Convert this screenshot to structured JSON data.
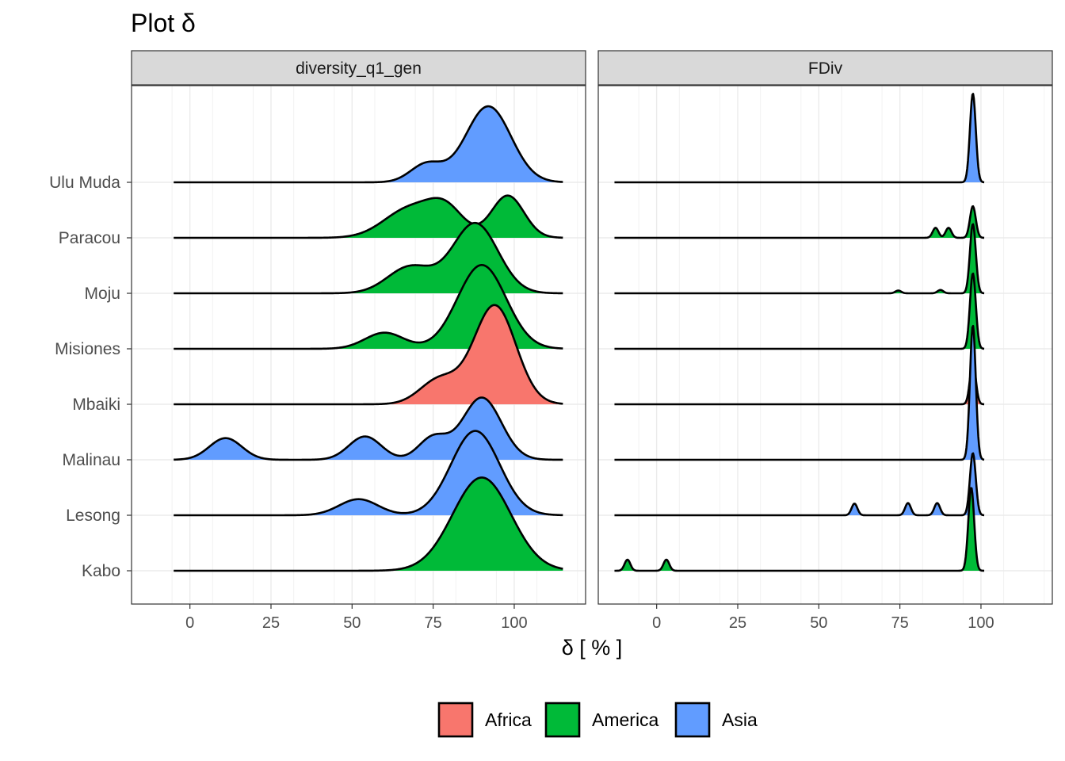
{
  "title": "Plot δ",
  "chart_data": {
    "type": "ridgeline",
    "xlabel": "δ [ % ]",
    "ylabel": "",
    "xlim": [
      -18,
      122
    ],
    "xticks": [
      0,
      25,
      50,
      75,
      100
    ],
    "grid": true,
    "legend_position": "bottom",
    "sites": [
      "Kabo",
      "Lesong",
      "Malinau",
      "Mbaiki",
      "Misiones",
      "Moju",
      "Paracou",
      "Ulu Muda"
    ],
    "groups": [
      {
        "name": "Africa",
        "color": "#F8766D"
      },
      {
        "name": "America",
        "color": "#00BA38"
      },
      {
        "name": "Asia",
        "color": "#619CFF"
      }
    ],
    "panels": [
      {
        "strip": "diversity_q1_gen",
        "range": [
          -5,
          115
        ],
        "ridges": [
          {
            "site": "Kabo",
            "group": "America",
            "components": [
              {
                "mu": 90,
                "sigma": 9,
                "h": 1.68
              }
            ]
          },
          {
            "site": "Lesong",
            "group": "Asia",
            "components": [
              {
                "mu": 52,
                "sigma": 6,
                "h": 0.29
              },
              {
                "mu": 88,
                "sigma": 7.5,
                "h": 1.52
              }
            ]
          },
          {
            "site": "Malinau",
            "group": "Asia",
            "components": [
              {
                "mu": 11,
                "sigma": 5,
                "h": 0.39
              },
              {
                "mu": 54,
                "sigma": 5,
                "h": 0.42
              },
              {
                "mu": 75,
                "sigma": 4.5,
                "h": 0.4
              },
              {
                "mu": 90,
                "sigma": 6,
                "h": 1.12
              }
            ]
          },
          {
            "site": "Mbaiki",
            "group": "Africa",
            "components": [
              {
                "mu": 77,
                "sigma": 6,
                "h": 0.45
              },
              {
                "mu": 94,
                "sigma": 6.5,
                "h": 1.78
              }
            ]
          },
          {
            "site": "Misiones",
            "group": "America",
            "components": [
              {
                "mu": 60,
                "sigma": 6,
                "h": 0.29
              },
              {
                "mu": 90,
                "sigma": 7.5,
                "h": 1.51
              }
            ]
          },
          {
            "site": "Moju",
            "group": "America",
            "components": [
              {
                "mu": 68,
                "sigma": 7,
                "h": 0.48
              },
              {
                "mu": 88,
                "sigma": 7,
                "h": 1.26
              }
            ]
          },
          {
            "site": "Paracou",
            "group": "America",
            "components": [
              {
                "mu": 68,
                "sigma": 8,
                "h": 0.53
              },
              {
                "mu": 79,
                "sigma": 5.5,
                "h": 0.46
              },
              {
                "mu": 98,
                "sigma": 5,
                "h": 0.76
              }
            ]
          },
          {
            "site": "Ulu Muda",
            "group": "Asia",
            "components": [
              {
                "mu": 73,
                "sigma": 5,
                "h": 0.33
              },
              {
                "mu": 92,
                "sigma": 7,
                "h": 1.37
              }
            ]
          }
        ]
      },
      {
        "strip": "FDiv",
        "range": [
          -13,
          101
        ],
        "ridges": [
          {
            "site": "Kabo",
            "group": "America",
            "components": [
              {
                "mu": -9,
                "sigma": 0.9,
                "h": 0.2
              },
              {
                "mu": 3,
                "sigma": 0.9,
                "h": 0.2
              },
              {
                "mu": 97,
                "sigma": 0.9,
                "h": 1.5
              }
            ]
          },
          {
            "site": "Lesong",
            "group": "Asia",
            "components": [
              {
                "mu": 61,
                "sigma": 0.9,
                "h": 0.21
              },
              {
                "mu": 77.5,
                "sigma": 0.9,
                "h": 0.22
              },
              {
                "mu": 86.5,
                "sigma": 0.9,
                "h": 0.22
              },
              {
                "mu": 97.5,
                "sigma": 0.9,
                "h": 1.12
              }
            ]
          },
          {
            "site": "Malinau",
            "group": "Asia",
            "components": [
              {
                "mu": 97.5,
                "sigma": 0.9,
                "h": 2.42
              }
            ]
          },
          {
            "site": "Mbaiki",
            "group": "Africa",
            "components": [
              {
                "mu": 97.5,
                "sigma": 0.9,
                "h": 0.76
              }
            ]
          },
          {
            "site": "Misiones",
            "group": "America",
            "components": [
              {
                "mu": 97.5,
                "sigma": 0.9,
                "h": 1.36
              }
            ]
          },
          {
            "site": "Moju",
            "group": "America",
            "components": [
              {
                "mu": 74.5,
                "sigma": 0.9,
                "h": 0.05
              },
              {
                "mu": 87.5,
                "sigma": 0.9,
                "h": 0.06
              },
              {
                "mu": 97.5,
                "sigma": 0.9,
                "h": 1.25
              }
            ]
          },
          {
            "site": "Paracou",
            "group": "America",
            "components": [
              {
                "mu": 86,
                "sigma": 0.9,
                "h": 0.18
              },
              {
                "mu": 90,
                "sigma": 0.9,
                "h": 0.18
              },
              {
                "mu": 97.5,
                "sigma": 0.9,
                "h": 0.57
              }
            ]
          },
          {
            "site": "Ulu Muda",
            "group": "Asia",
            "components": [
              {
                "mu": 97.5,
                "sigma": 0.9,
                "h": 1.6
              }
            ]
          }
        ]
      }
    ]
  }
}
